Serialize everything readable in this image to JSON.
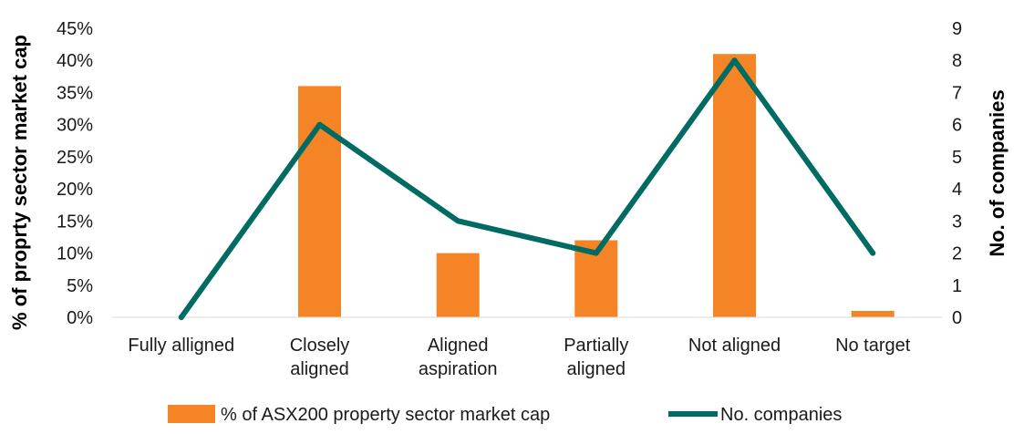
{
  "chart_data": {
    "type": "bar",
    "categories": [
      [
        "Fully alligned"
      ],
      [
        "Closely",
        "aligned"
      ],
      [
        "Aligned",
        "aspiration"
      ],
      [
        "Partially",
        "aligned"
      ],
      [
        "Not aligned"
      ],
      [
        "No target"
      ]
    ],
    "series": [
      {
        "name": "% of ASX200 property sector market cap",
        "kind": "bar",
        "axis": "left",
        "color": "#F58426",
        "values": [
          0,
          36,
          10,
          12,
          41,
          1
        ]
      },
      {
        "name": "No. companies",
        "kind": "line",
        "axis": "right",
        "color": "#006B63",
        "values": [
          0,
          6,
          3,
          2,
          8,
          2
        ]
      }
    ],
    "y_left": {
      "label": "% of proprty sector market cap",
      "min": 0,
      "max": 45,
      "step": 5,
      "tick_labels": [
        "0%",
        "5%",
        "10%",
        "15%",
        "20%",
        "25%",
        "30%",
        "35%",
        "40%",
        "45%"
      ]
    },
    "y_right": {
      "label": "No. of companies",
      "min": 0,
      "max": 9,
      "step": 1,
      "tick_labels": [
        "0",
        "1",
        "2",
        "3",
        "4",
        "5",
        "6",
        "7",
        "8",
        "9"
      ]
    },
    "grid": false,
    "legend_position": "bottom"
  }
}
